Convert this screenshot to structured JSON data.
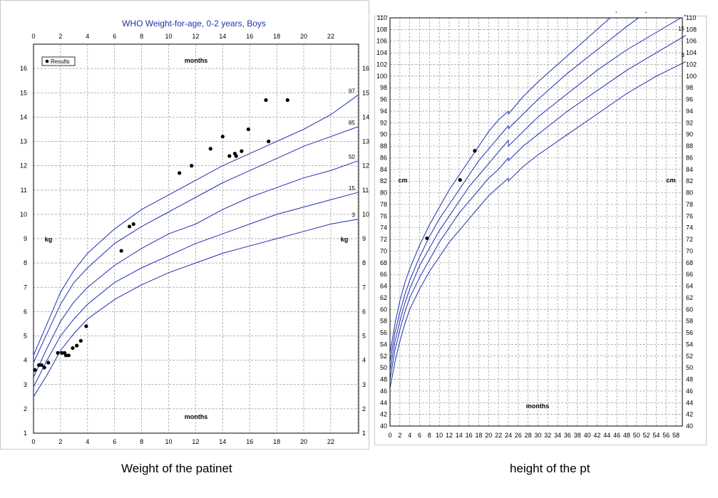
{
  "colors": {
    "curve": "#1f2fb0",
    "title": "#2233aa",
    "grid": "#9a9a9a",
    "frame": "#000000",
    "point": "#000000"
  },
  "chart_data": [
    {
      "type": "line",
      "title": "WHO Weight-for-age, 0-2 years, Boys",
      "xlabel": "months",
      "ylabel": "kg",
      "xlim": [
        0,
        24
      ],
      "ylim": [
        1,
        17
      ],
      "x_ticks": [
        "0",
        "2",
        "4",
        "6",
        "8",
        "10",
        "12",
        "14",
        "16",
        "18",
        "20",
        "22"
      ],
      "y_ticks": [
        "1",
        "2",
        "3",
        "4",
        "5",
        "6",
        "7",
        "8",
        "9",
        "10",
        "11",
        "12",
        "13",
        "14",
        "15",
        "16"
      ],
      "grid": true,
      "legend": {
        "position": "top-left",
        "label": "Results"
      },
      "series": [
        {
          "name": "97",
          "x": [
            0,
            1,
            2,
            3,
            4,
            6,
            8,
            10,
            12,
            14,
            16,
            18,
            20,
            22,
            24
          ],
          "y": [
            4.2,
            5.5,
            6.8,
            7.7,
            8.4,
            9.4,
            10.2,
            10.8,
            11.4,
            12.0,
            12.5,
            13.0,
            13.5,
            14.1,
            14.9
          ]
        },
        {
          "name": "85",
          "x": [
            0,
            1,
            2,
            3,
            4,
            6,
            8,
            10,
            12,
            14,
            16,
            18,
            20,
            22,
            24
          ],
          "y": [
            3.9,
            5.1,
            6.3,
            7.2,
            7.8,
            8.8,
            9.5,
            10.1,
            10.7,
            11.3,
            11.8,
            12.3,
            12.8,
            13.2,
            13.6
          ]
        },
        {
          "name": "50",
          "x": [
            0,
            1,
            2,
            3,
            4,
            6,
            8,
            10,
            12,
            14,
            16,
            18,
            20,
            22,
            24
          ],
          "y": [
            3.3,
            4.5,
            5.6,
            6.4,
            7.0,
            7.9,
            8.6,
            9.2,
            9.6,
            10.2,
            10.7,
            11.1,
            11.5,
            11.8,
            12.2
          ]
        },
        {
          "name": "15",
          "x": [
            0,
            1,
            2,
            3,
            4,
            6,
            8,
            10,
            12,
            14,
            16,
            18,
            20,
            22,
            24
          ],
          "y": [
            2.9,
            4.0,
            5.0,
            5.7,
            6.3,
            7.2,
            7.8,
            8.3,
            8.8,
            9.2,
            9.6,
            10.0,
            10.3,
            10.6,
            10.9
          ]
        },
        {
          "name": "3",
          "x": [
            0,
            1,
            2,
            3,
            4,
            6,
            8,
            10,
            12,
            14,
            16,
            18,
            20,
            22,
            24
          ],
          "y": [
            2.5,
            3.4,
            4.4,
            5.1,
            5.7,
            6.5,
            7.1,
            7.6,
            8.0,
            8.4,
            8.7,
            9.0,
            9.3,
            9.6,
            9.8
          ]
        }
      ],
      "points": [
        [
          0.1,
          3.6
        ],
        [
          0.4,
          3.8
        ],
        [
          0.6,
          3.8
        ],
        [
          0.8,
          3.7
        ],
        [
          1.1,
          3.9
        ],
        [
          1.8,
          4.3
        ],
        [
          2.1,
          4.3
        ],
        [
          2.3,
          4.3
        ],
        [
          2.4,
          4.2
        ],
        [
          2.6,
          4.2
        ],
        [
          2.9,
          4.5
        ],
        [
          3.2,
          4.6
        ],
        [
          3.5,
          4.8
        ],
        [
          3.9,
          5.4
        ],
        [
          6.5,
          8.5
        ],
        [
          7.1,
          9.5
        ],
        [
          7.4,
          9.6
        ],
        [
          10.8,
          11.7
        ],
        [
          11.7,
          12.0
        ],
        [
          13.1,
          12.7
        ],
        [
          14.0,
          13.2
        ],
        [
          14.5,
          12.4
        ],
        [
          14.9,
          12.5
        ],
        [
          15.0,
          12.4
        ],
        [
          15.4,
          12.6
        ],
        [
          15.9,
          13.5
        ],
        [
          17.2,
          14.7
        ],
        [
          17.4,
          13.0
        ],
        [
          18.8,
          14.7
        ]
      ]
    },
    {
      "type": "line",
      "xlabel": "months",
      "ylabel": "cm",
      "xlim": [
        0,
        60
      ],
      "ylim": [
        40,
        110
      ],
      "x_ticks": [
        "0",
        "2",
        "4",
        "6",
        "8",
        "10",
        "12",
        "14",
        "16",
        "18",
        "20",
        "22",
        "24",
        "26",
        "28",
        "30",
        "32",
        "34",
        "36",
        "38",
        "40",
        "42",
        "44",
        "46",
        "48",
        "50",
        "52",
        "54",
        "56",
        "58"
      ],
      "y_ticks": [
        "40",
        "42",
        "44",
        "46",
        "48",
        "50",
        "52",
        "54",
        "56",
        "58",
        "60",
        "62",
        "64",
        "66",
        "68",
        "70",
        "72",
        "74",
        "76",
        "78",
        "80",
        "82",
        "84",
        "86",
        "88",
        "90",
        "92",
        "94",
        "96",
        "98",
        "100",
        "102",
        "104",
        "106",
        "108",
        "110"
      ],
      "grid": true,
      "series": [
        {
          "name": "",
          "x": [
            0,
            1,
            2,
            3,
            4,
            6,
            8,
            10,
            12,
            14,
            16,
            18,
            20,
            22,
            24,
            24,
            27,
            30,
            36,
            42,
            46
          ],
          "y": [
            52.5,
            57.5,
            61.5,
            64.5,
            67,
            71,
            74.5,
            77.5,
            80.5,
            83,
            85.5,
            88,
            90.5,
            92.5,
            94,
            93.5,
            96.5,
            99,
            103.5,
            108,
            111
          ]
        },
        {
          "name": "",
          "x": [
            0,
            1,
            2,
            3,
            4,
            6,
            8,
            10,
            12,
            14,
            16,
            18,
            20,
            22,
            24,
            24,
            27,
            30,
            36,
            42,
            48,
            52
          ],
          "y": [
            51,
            56,
            59.5,
            62.5,
            65,
            69,
            72.5,
            75.5,
            78,
            80.5,
            83,
            85.5,
            87.5,
            89.5,
            91.5,
            91,
            93.5,
            96,
            100.5,
            104.5,
            108.5,
            111
          ]
        },
        {
          "name": "",
          "x": [
            0,
            1,
            2,
            3,
            4,
            6,
            8,
            10,
            12,
            14,
            16,
            18,
            20,
            22,
            24,
            24,
            27,
            30,
            36,
            42,
            48,
            54,
            60
          ],
          "y": [
            49.5,
            54.5,
            58,
            61,
            63.5,
            67.5,
            70.5,
            73.5,
            76,
            78.5,
            81,
            83,
            85,
            87,
            89,
            88,
            90.5,
            93,
            97,
            101,
            104.5,
            107.5,
            110.5
          ]
        },
        {
          "name": "15",
          "x": [
            0,
            1,
            2,
            3,
            4,
            6,
            8,
            10,
            12,
            14,
            16,
            18,
            20,
            22,
            24,
            24,
            27,
            30,
            36,
            42,
            48,
            54,
            60
          ],
          "y": [
            48,
            53,
            56.5,
            59.5,
            62,
            65.5,
            68.5,
            71.5,
            74,
            76.5,
            78.5,
            80.5,
            82.5,
            84,
            86,
            85.5,
            88,
            90,
            94,
            97.5,
            101,
            104,
            107
          ]
        },
        {
          "name": "3",
          "x": [
            0,
            1,
            2,
            3,
            4,
            6,
            8,
            10,
            12,
            14,
            16,
            18,
            20,
            22,
            24,
            24,
            27,
            30,
            36,
            42,
            48,
            54,
            60
          ],
          "y": [
            46.5,
            51,
            54.5,
            57.5,
            60,
            63.5,
            66.5,
            69,
            71.5,
            73.5,
            75.5,
            77.5,
            79.5,
            81,
            82.5,
            82,
            84.5,
            86.5,
            90,
            93.5,
            97,
            100,
            102.5
          ]
        }
      ],
      "points": [
        [
          7.5,
          72.2
        ],
        [
          14.2,
          82.2
        ],
        [
          17.2,
          87.2
        ]
      ]
    }
  ],
  "captions": {
    "left": "Weight of the patinet",
    "right": "height of the pt"
  }
}
